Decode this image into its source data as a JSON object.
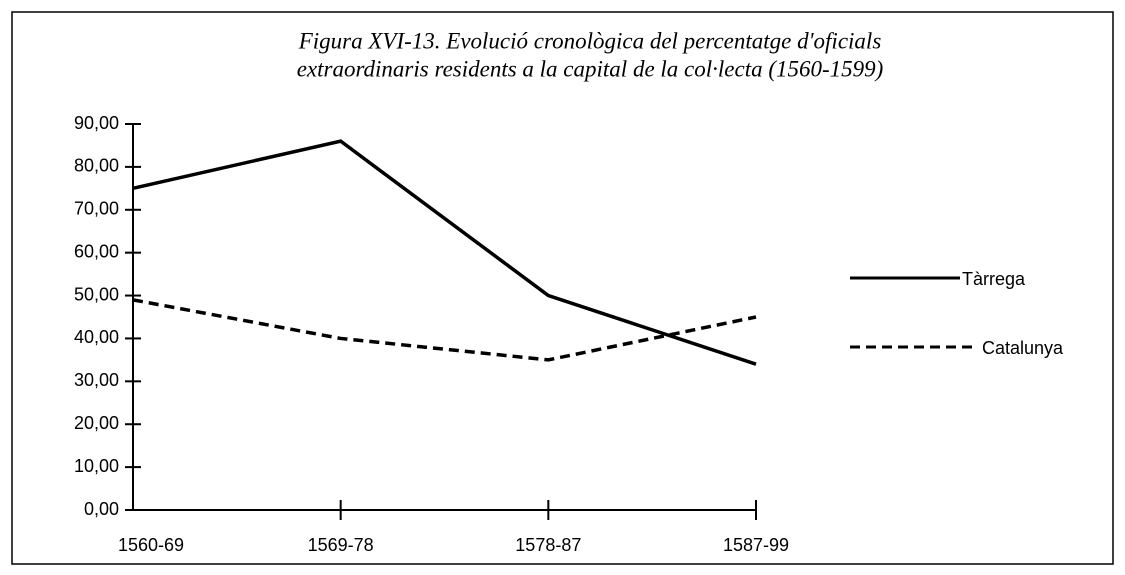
{
  "chart_data": {
    "type": "line",
    "title": [
      "Figura XVI-13. Evolució cronològica del percentatge d'oficials",
      "extraordinaris residents a la capital de la col·lecta (1560-1599)"
    ],
    "categories": [
      "1560-69",
      "1569-78",
      "1578-87",
      "1587-99"
    ],
    "series": [
      {
        "name": "Tàrrega",
        "color": "#000000",
        "line_style": "solid",
        "values": [
          75,
          86,
          50,
          34
        ]
      },
      {
        "name": "Catalunya",
        "color": "#000000",
        "line_style": "dashed",
        "values": [
          49,
          40,
          35,
          45
        ]
      }
    ],
    "ylim": [
      0,
      90
    ],
    "yticks": [
      {
        "value": 0,
        "label": "0,00"
      },
      {
        "value": 10,
        "label": "10,00"
      },
      {
        "value": 20,
        "label": "20,00"
      },
      {
        "value": 30,
        "label": "30,00"
      },
      {
        "value": 40,
        "label": "40,00"
      },
      {
        "value": 50,
        "label": "50,00"
      },
      {
        "value": 60,
        "label": "60,00"
      },
      {
        "value": 70,
        "label": "70,00"
      },
      {
        "value": 80,
        "label": "80,00"
      },
      {
        "value": 90,
        "label": "90,00"
      }
    ],
    "grid": false,
    "legend": "right"
  }
}
